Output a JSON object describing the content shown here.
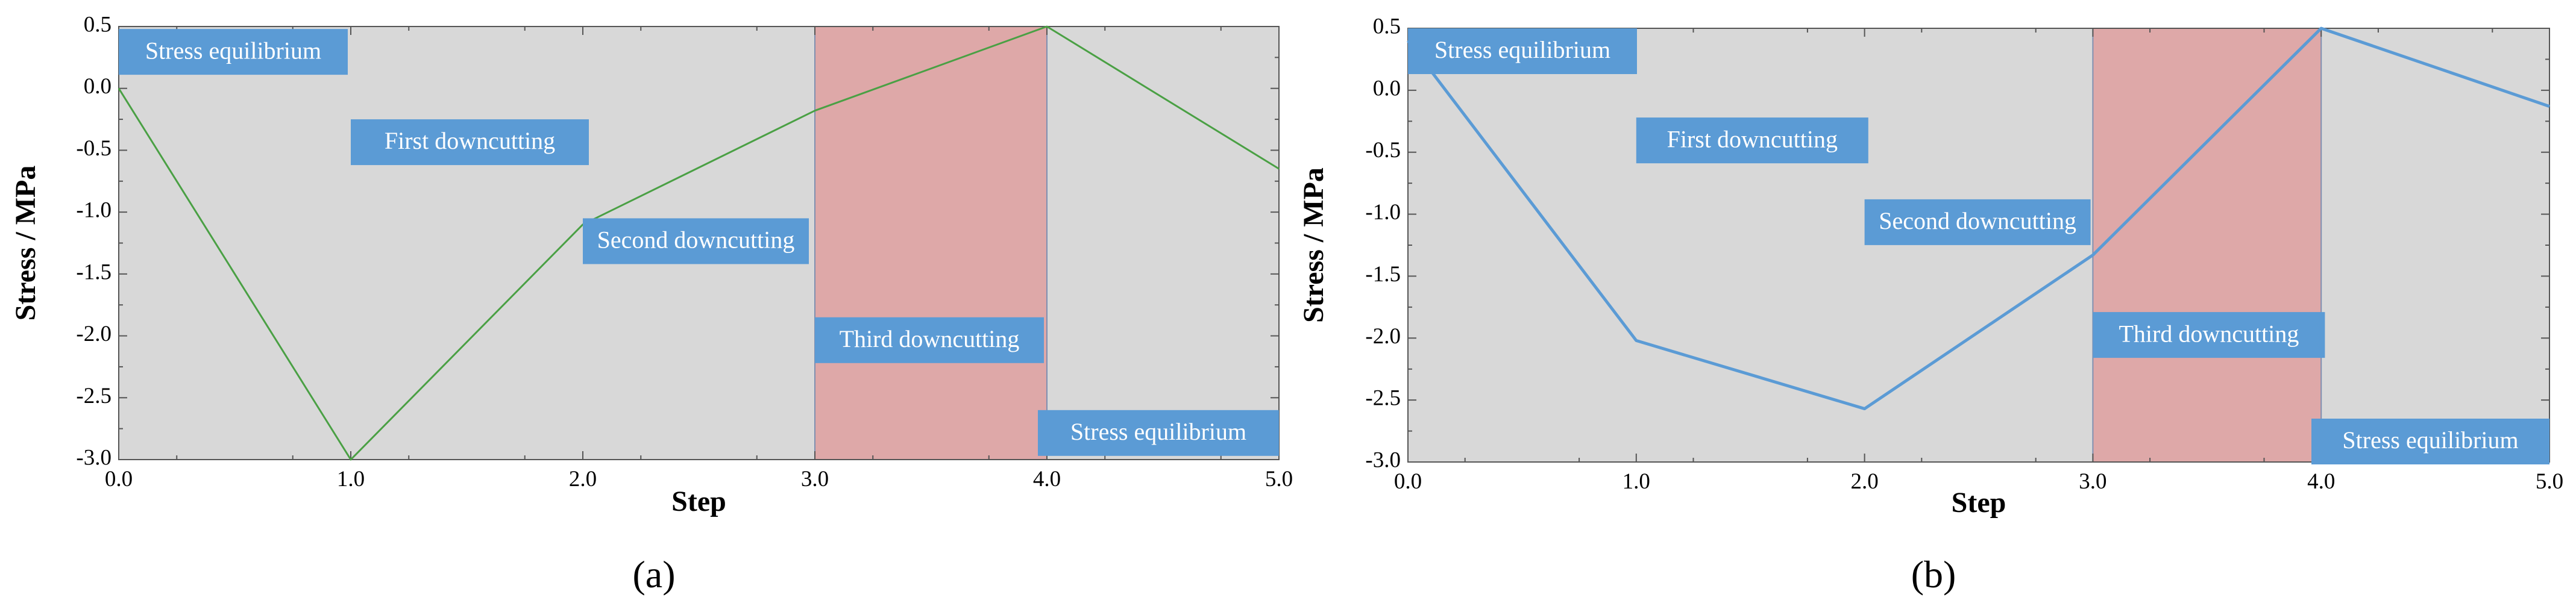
{
  "colors": {
    "plot_bg": "#d8d8d8",
    "band": "#dea8a8",
    "annotation_box": "#5b9bd5",
    "line_a": "#4aa044",
    "line_b": "#5b9bd5",
    "frame": "#555555"
  },
  "chart_data": [
    {
      "type": "line",
      "panel": "a",
      "panel_label": "(a)",
      "title": "",
      "xlabel": "Step",
      "ylabel": "Stress / MPa",
      "xlim": [
        0,
        5
      ],
      "ylim": [
        -3.0,
        0.5
      ],
      "xticks": [
        "0.0",
        "1.0",
        "2.0",
        "3.0",
        "4.0",
        "5.0"
      ],
      "yticks": [
        "0.5",
        "0.0",
        "-0.5",
        "-1.0",
        "-1.5",
        "-2.0",
        "-2.5",
        "-3.0"
      ],
      "highlight_range": [
        3.0,
        4.0
      ],
      "series": [
        {
          "name": "Stress",
          "x": [
            0,
            1,
            2,
            3,
            4,
            5
          ],
          "y": [
            0.0,
            -3.0,
            -1.1,
            -0.18,
            0.5,
            -0.65
          ]
        }
      ],
      "annotations": [
        {
          "text": "Stress equilibrium",
          "x": 0.0,
          "y": 0.48
        },
        {
          "text": "First downcutting",
          "x": 1.0,
          "y": -0.25
        },
        {
          "text": "Second downcutting",
          "x": 2.0,
          "y": -1.05
        },
        {
          "text": "Third downcutting",
          "x": 3.0,
          "y": -1.85
        },
        {
          "text": "Stress equilibrium",
          "x": 4.0,
          "y": -2.6
        }
      ]
    },
    {
      "type": "line",
      "panel": "b",
      "panel_label": "(b)",
      "title": "",
      "xlabel": "Step",
      "ylabel": "Stress / MPa",
      "xlim": [
        0,
        5
      ],
      "ylim": [
        -3.0,
        0.5
      ],
      "xticks": [
        "0.0",
        "1.0",
        "2.0",
        "3.0",
        "4.0",
        "5.0"
      ],
      "yticks": [
        "0.5",
        "0.0",
        "-0.5",
        "-1.0",
        "-1.5",
        "-2.0",
        "-2.5",
        "-3.0"
      ],
      "highlight_range": [
        3.0,
        4.0
      ],
      "series": [
        {
          "name": "Stress",
          "x": [
            0,
            1,
            2,
            3,
            4,
            5
          ],
          "y": [
            0.4,
            -2.02,
            -2.57,
            -1.33,
            0.5,
            -0.13
          ]
        }
      ],
      "annotations": [
        {
          "text": "Stress equilibrium",
          "x": 0.0,
          "y": 0.5
        },
        {
          "text": "First downcutting",
          "x": 1.0,
          "y": -0.22
        },
        {
          "text": "Second downcutting",
          "x": 2.0,
          "y": -0.88
        },
        {
          "text": "Third downcutting",
          "x": 3.0,
          "y": -1.79
        },
        {
          "text": "Stress equilibrium",
          "x": 4.0,
          "y": -2.65
        }
      ]
    }
  ]
}
